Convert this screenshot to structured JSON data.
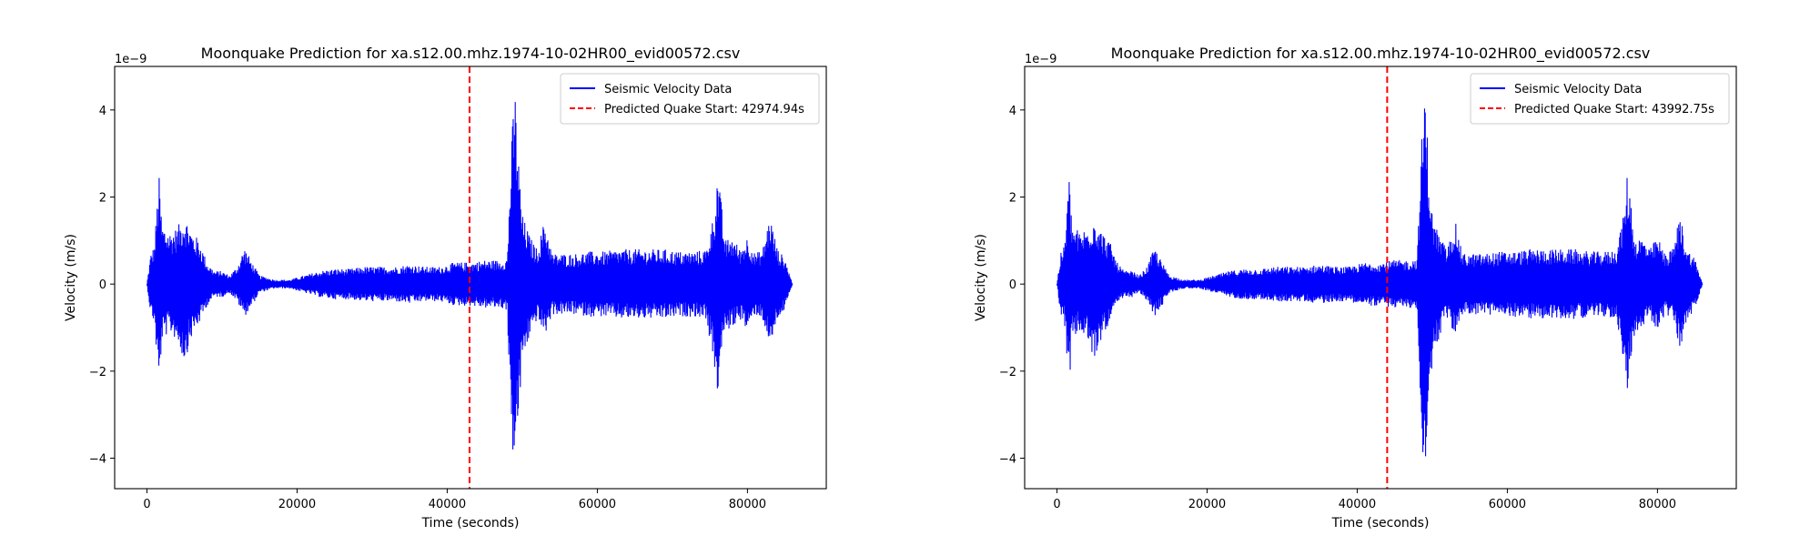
{
  "chart_data": [
    {
      "type": "line",
      "title": "Moonquake Prediction for xa.s12.00.mhz.1974-10-02HR00_evid00572.csv",
      "xlabel": "Time (seconds)",
      "ylabel": "Velocity (m/s)",
      "y_multiplier_label": "1e−9",
      "xlim": [
        -4300,
        90500
      ],
      "ylim": [
        -4.7,
        5.0
      ],
      "x_ticks": [
        0,
        20000,
        40000,
        60000,
        80000
      ],
      "x_tick_labels": [
        "0",
        "20000",
        "40000",
        "60000",
        "80000"
      ],
      "y_ticks": [
        -4,
        -2,
        0,
        2,
        4
      ],
      "y_tick_labels": [
        "−4",
        "−2",
        "0",
        "2",
        "4"
      ],
      "grid": false,
      "legend_position": "top-right",
      "series": [
        {
          "name": "Seismic Velocity Data",
          "style": "solid",
          "color": "#0000ff",
          "envelope": {
            "x": [
              0,
              500,
              1000,
              1600,
              2000,
              3000,
              4000,
              5000,
              6000,
              7000,
              8000,
              9000,
              10000,
              11000,
              12000,
              13000,
              14000,
              15000,
              17000,
              19000,
              21000,
              23000,
              25000,
              27000,
              29000,
              31000,
              33000,
              35000,
              37000,
              39000,
              41000,
              43000,
              45000,
              47000,
              48000,
              48500,
              49000,
              49500,
              50000,
              51000,
              52000,
              53000,
              54000,
              55000,
              57000,
              59000,
              61000,
              63000,
              65000,
              67000,
              69000,
              71000,
              73000,
              74500,
              75500,
              76000,
              76500,
              77000,
              78000,
              79000,
              80000,
              81000,
              82000,
              83000,
              84000,
              85000,
              86000
            ],
            "upper": [
              0.0,
              0.7,
              0.9,
              2.55,
              1.4,
              1.2,
              1.3,
              1.6,
              1.2,
              1.0,
              0.5,
              0.3,
              0.3,
              0.2,
              0.4,
              0.85,
              0.5,
              0.2,
              0.1,
              0.1,
              0.2,
              0.3,
              0.35,
              0.35,
              0.4,
              0.4,
              0.4,
              0.45,
              0.4,
              0.4,
              0.5,
              0.5,
              0.55,
              0.55,
              0.6,
              3.0,
              4.65,
              2.9,
              1.6,
              1.1,
              0.8,
              1.5,
              0.7,
              0.7,
              0.7,
              0.75,
              0.75,
              0.8,
              0.8,
              0.8,
              0.8,
              0.75,
              0.75,
              0.8,
              1.6,
              2.6,
              1.9,
              1.0,
              1.1,
              0.8,
              1.1,
              0.7,
              0.8,
              1.6,
              0.8,
              0.6,
              0.0
            ],
            "lower": [
              0.0,
              -0.7,
              -0.9,
              -2.45,
              -1.3,
              -1.1,
              -1.3,
              -1.8,
              -1.2,
              -0.9,
              -0.5,
              -0.3,
              -0.3,
              -0.2,
              -0.4,
              -0.75,
              -0.5,
              -0.2,
              -0.1,
              -0.1,
              -0.2,
              -0.3,
              -0.35,
              -0.35,
              -0.4,
              -0.4,
              -0.4,
              -0.45,
              -0.4,
              -0.4,
              -0.5,
              -0.5,
              -0.55,
              -0.55,
              -0.6,
              -3.5,
              -4.3,
              -3.2,
              -1.8,
              -1.2,
              -0.8,
              -1.2,
              -0.7,
              -0.7,
              -0.7,
              -0.75,
              -0.75,
              -0.8,
              -0.8,
              -0.8,
              -0.8,
              -0.75,
              -0.75,
              -0.8,
              -1.8,
              -2.6,
              -1.6,
              -1.1,
              -1.0,
              -0.8,
              -1.1,
              -0.7,
              -0.8,
              -1.5,
              -0.8,
              -0.6,
              0.0
            ]
          }
        },
        {
          "name": "Predicted Quake Start: 42974.94s",
          "style": "dashed",
          "color": "#ff0000",
          "x": 42974.94
        }
      ]
    },
    {
      "type": "line",
      "title": "Moonquake Prediction for xa.s12.00.mhz.1974-10-02HR00_evid00572.csv",
      "xlabel": "Time (seconds)",
      "ylabel": "Velocity (m/s)",
      "y_multiplier_label": "1e−9",
      "xlim": [
        -4300,
        90500
      ],
      "ylim": [
        -4.7,
        5.0
      ],
      "x_ticks": [
        0,
        20000,
        40000,
        60000,
        80000
      ],
      "x_tick_labels": [
        "0",
        "20000",
        "40000",
        "60000",
        "80000"
      ],
      "y_ticks": [
        -4,
        -2,
        0,
        2,
        4
      ],
      "y_tick_labels": [
        "−4",
        "−2",
        "0",
        "2",
        "4"
      ],
      "grid": false,
      "legend_position": "top-right",
      "series": [
        {
          "name": "Seismic Velocity Data",
          "style": "solid",
          "color": "#0000ff",
          "envelope": {
            "x": [
              0,
              500,
              1000,
              1600,
              2000,
              3000,
              4000,
              5000,
              6000,
              7000,
              8000,
              9000,
              10000,
              11000,
              12000,
              13000,
              14000,
              15000,
              17000,
              19000,
              21000,
              23000,
              25000,
              27000,
              29000,
              31000,
              33000,
              35000,
              37000,
              39000,
              41000,
              43000,
              45000,
              47000,
              48000,
              48500,
              49000,
              49500,
              50000,
              51000,
              52000,
              53000,
              54000,
              55000,
              57000,
              59000,
              61000,
              63000,
              65000,
              67000,
              69000,
              71000,
              73000,
              74500,
              75500,
              76000,
              76500,
              77000,
              78000,
              79000,
              80000,
              81000,
              82000,
              83000,
              84000,
              85000,
              86000
            ],
            "upper": [
              0.0,
              0.7,
              0.9,
              2.55,
              1.4,
              1.2,
              1.3,
              1.6,
              1.2,
              1.0,
              0.5,
              0.3,
              0.3,
              0.2,
              0.4,
              0.85,
              0.5,
              0.2,
              0.1,
              0.1,
              0.2,
              0.3,
              0.35,
              0.35,
              0.4,
              0.4,
              0.4,
              0.45,
              0.4,
              0.4,
              0.5,
              0.5,
              0.55,
              0.55,
              0.6,
              3.0,
              4.65,
              2.9,
              1.6,
              1.1,
              0.8,
              1.5,
              0.7,
              0.7,
              0.7,
              0.75,
              0.75,
              0.8,
              0.8,
              0.8,
              0.8,
              0.75,
              0.75,
              0.8,
              1.6,
              2.6,
              1.9,
              1.0,
              1.1,
              0.8,
              1.1,
              0.7,
              0.8,
              1.6,
              0.8,
              0.6,
              0.0
            ],
            "lower": [
              0.0,
              -0.7,
              -0.9,
              -2.45,
              -1.3,
              -1.1,
              -1.3,
              -1.8,
              -1.2,
              -0.9,
              -0.5,
              -0.3,
              -0.3,
              -0.2,
              -0.4,
              -0.75,
              -0.5,
              -0.2,
              -0.1,
              -0.1,
              -0.2,
              -0.3,
              -0.35,
              -0.35,
              -0.4,
              -0.4,
              -0.4,
              -0.45,
              -0.4,
              -0.4,
              -0.5,
              -0.5,
              -0.55,
              -0.55,
              -0.6,
              -3.5,
              -4.3,
              -3.2,
              -1.8,
              -1.2,
              -0.8,
              -1.2,
              -0.7,
              -0.7,
              -0.7,
              -0.75,
              -0.75,
              -0.8,
              -0.8,
              -0.8,
              -0.8,
              -0.75,
              -0.75,
              -0.8,
              -1.8,
              -2.6,
              -1.6,
              -1.1,
              -1.0,
              -0.8,
              -1.1,
              -0.7,
              -0.8,
              -1.5,
              -0.8,
              -0.6,
              0.0
            ]
          }
        },
        {
          "name": "Predicted Quake Start: 43992.75s",
          "style": "dashed",
          "color": "#ff0000",
          "x": 43992.75
        }
      ]
    }
  ]
}
